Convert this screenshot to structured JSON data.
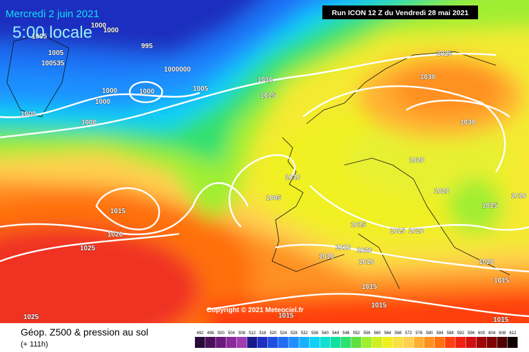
{
  "header": {
    "date": "Mercredi 2 juin 2021",
    "time": "5:00 locale",
    "run": "Run ICON 12 Z du Vendredi 28 mai 2021"
  },
  "copyright": "Copyright © 2021 Meteociel.fr",
  "footer": {
    "title": "Géop. Z500 & pression au sol",
    "lead": "(+ 111h)"
  },
  "legend": {
    "values": [
      492,
      496,
      500,
      504,
      508,
      512,
      516,
      520,
      524,
      528,
      532,
      536,
      540,
      544,
      548,
      552,
      556,
      560,
      564,
      568,
      572,
      576,
      580,
      584,
      588,
      592,
      596,
      600,
      604,
      608,
      612
    ],
    "colors": [
      "#2a0a3a",
      "#4a0f5a",
      "#6a1a7a",
      "#8a2a9a",
      "#a03cb0",
      "#1a1a8a",
      "#1f2fbf",
      "#1e4fe0",
      "#1f6ff5",
      "#1e90ff",
      "#19b0ff",
      "#10d0f5",
      "#10e0d0",
      "#10e0a0",
      "#30e070",
      "#60e040",
      "#a0ee30",
      "#d0f020",
      "#f0f020",
      "#f8e040",
      "#ffd050",
      "#ffb030",
      "#ff9020",
      "#ff7010",
      "#ff4010",
      "#f02010",
      "#d01010",
      "#a00808",
      "#800404",
      "#500000",
      "#100000"
    ]
  },
  "isobar_labels": [
    "1000",
    "1000",
    "1005",
    "1005",
    "100535",
    "995",
    "1000000",
    "1000",
    "1000",
    "1000",
    "1000",
    "1000",
    "1005",
    "1010",
    "1015",
    "1025",
    "1030",
    "1030",
    "1020",
    "1010",
    "1005",
    "1020",
    "1015",
    "1010",
    "1015",
    "1020",
    "1025",
    "1015",
    "1015",
    "1020",
    "1010",
    "1010",
    "1020",
    "1010",
    "1020",
    "1015",
    "1015",
    "1015",
    "1025",
    "1015",
    "1015"
  ]
}
